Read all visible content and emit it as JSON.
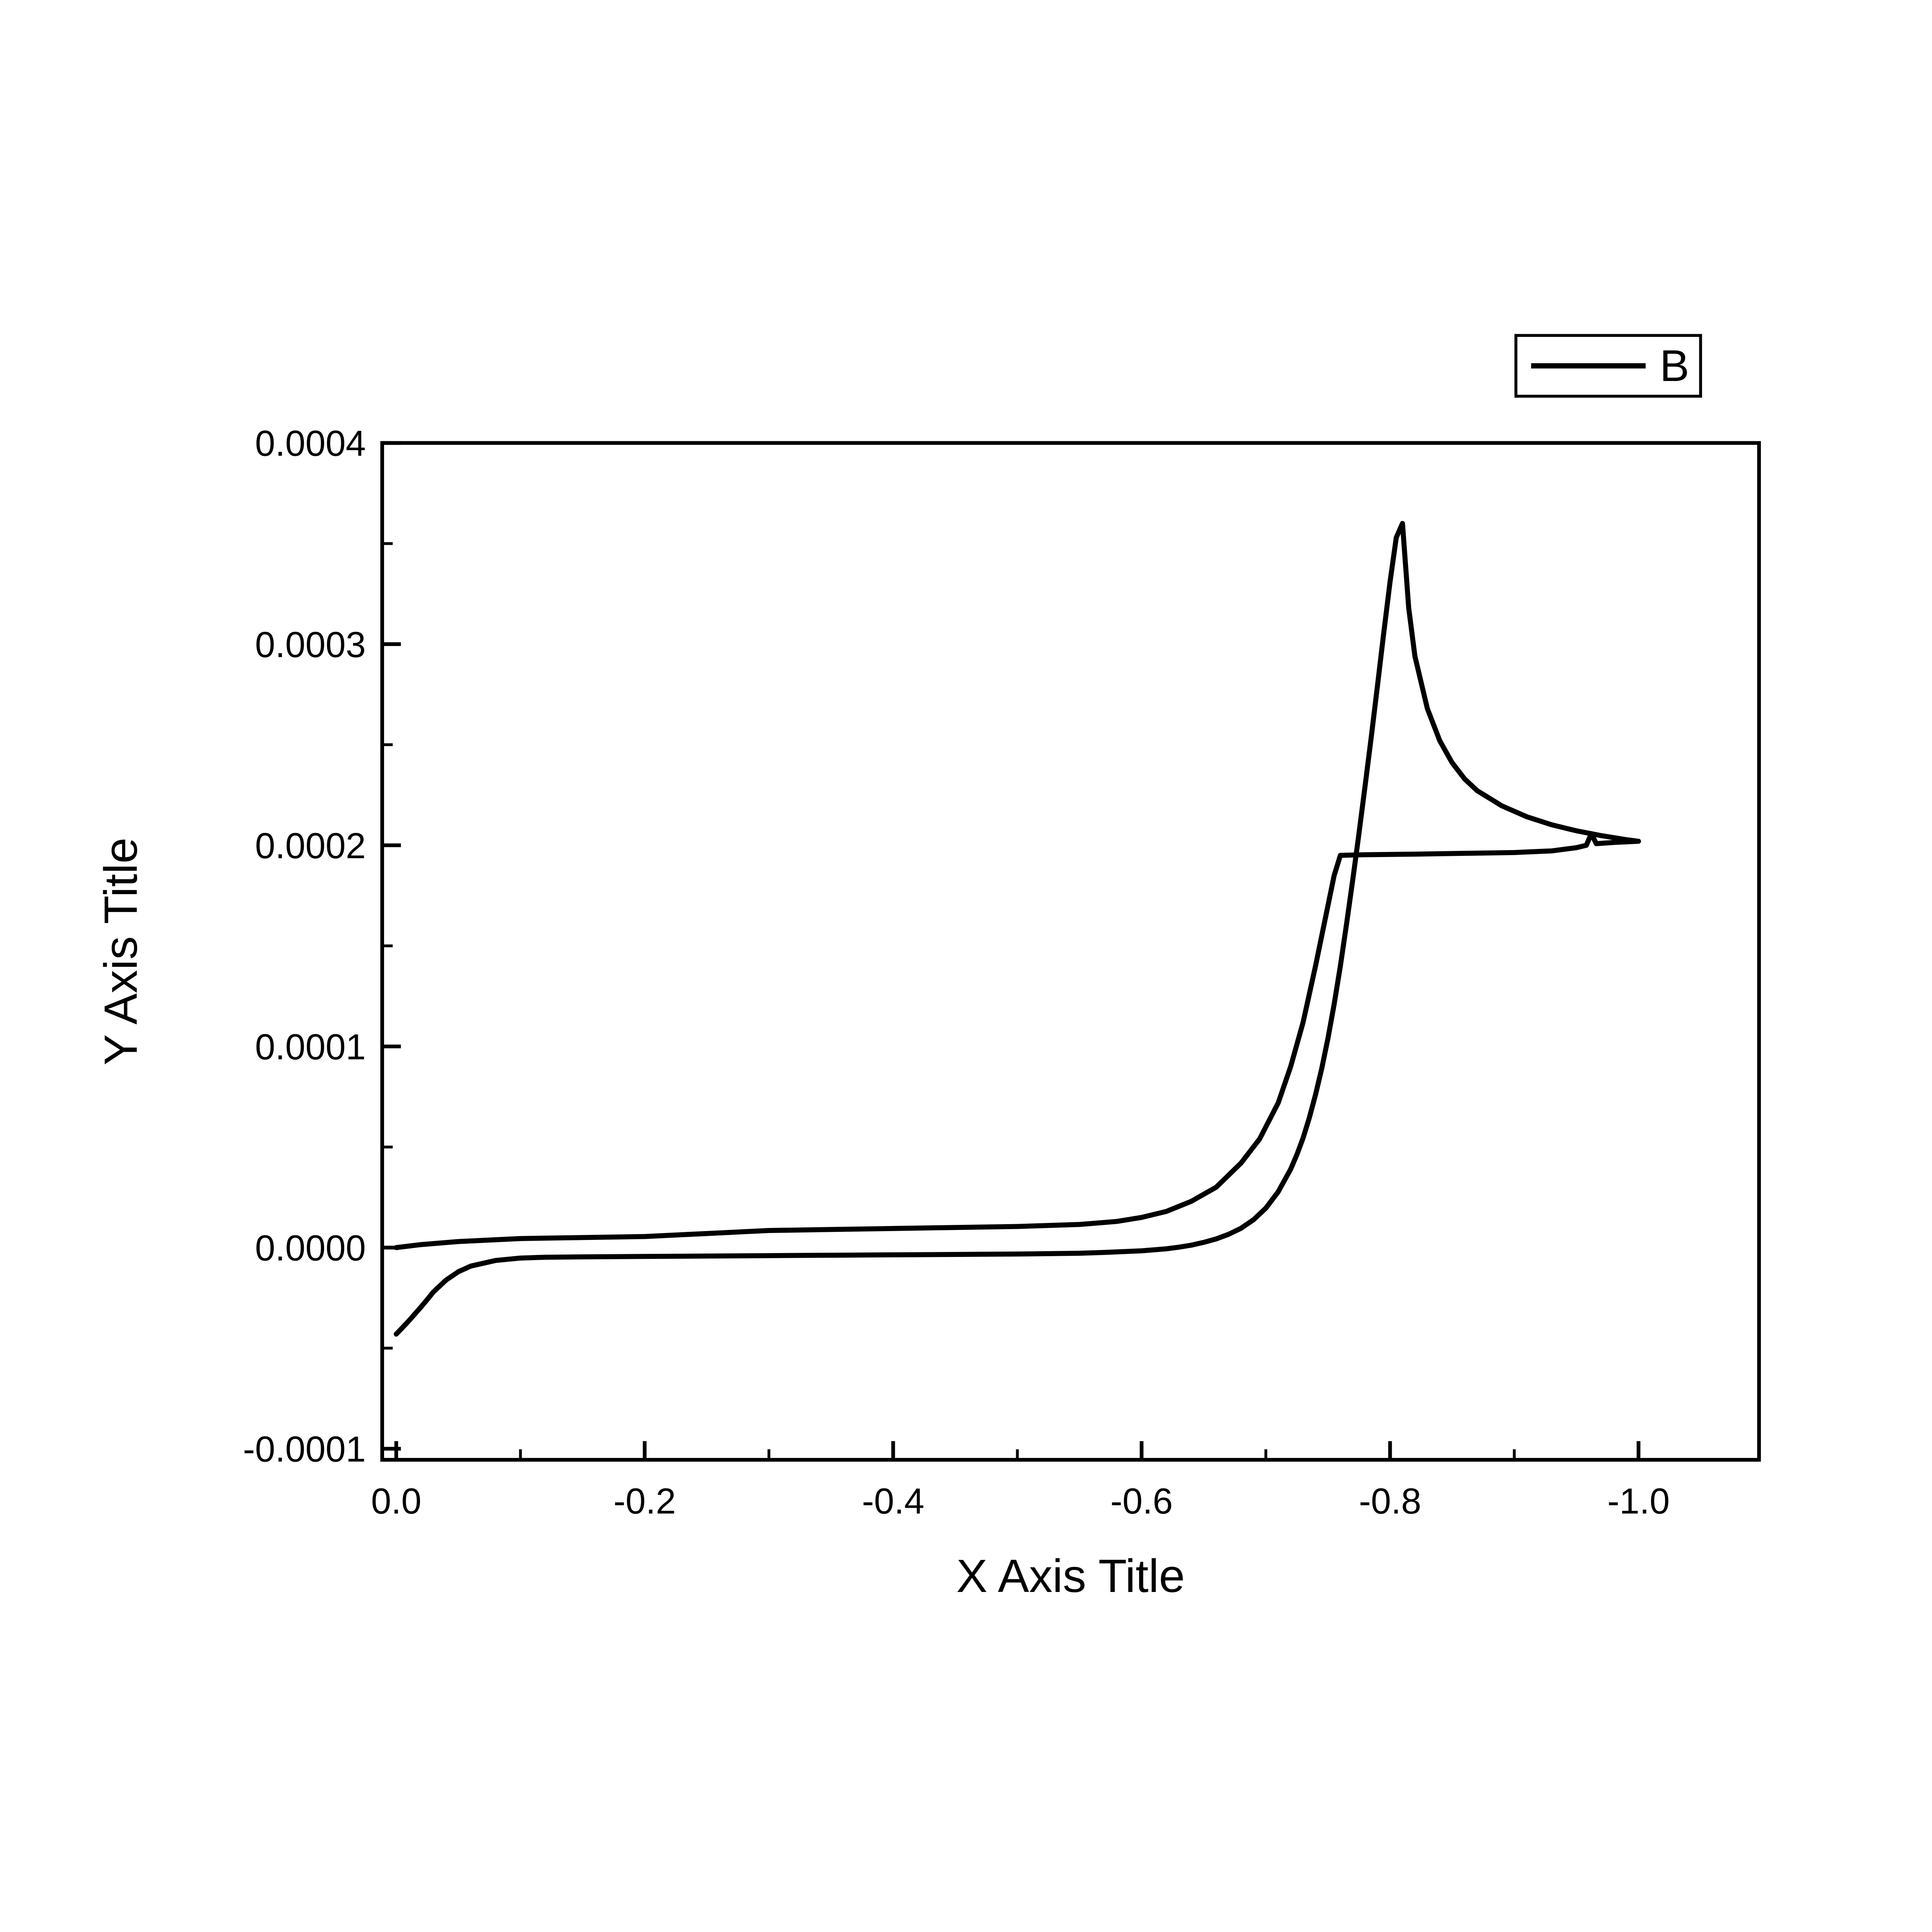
{
  "figure": {
    "background_color": "#ffffff",
    "frame_color": "#000000"
  },
  "legend": {
    "label": "B",
    "line_color": "#000000"
  },
  "chart_data": {
    "type": "line",
    "title": "",
    "xlabel": "X Axis Title",
    "ylabel": "Y Axis Title",
    "x_axis_reversed": true,
    "xlim": [
      0.0113,
      -1.097
    ],
    "ylim": [
      -0.0001055,
      0.0004
    ],
    "grid": false,
    "legend_position": "top-right-outside",
    "x_ticks": [
      {
        "value": 0.0,
        "label": "0.0"
      },
      {
        "value": -0.2,
        "label": "-0.2"
      },
      {
        "value": -0.4,
        "label": "-0.4"
      },
      {
        "value": -0.6,
        "label": "-0.6"
      },
      {
        "value": -0.8,
        "label": "-0.8"
      },
      {
        "value": -1.0,
        "label": "-1.0"
      }
    ],
    "y_ticks": [
      {
        "value": 0.0004,
        "label": "0.0004"
      },
      {
        "value": 0.0003,
        "label": "0.0003"
      },
      {
        "value": 0.0002,
        "label": "0.0002"
      },
      {
        "value": 0.0001,
        "label": "0.0001"
      },
      {
        "value": 0.0,
        "label": "0.0000"
      },
      {
        "value": -0.0001,
        "label": "-0.0001"
      }
    ],
    "x_minor_ticks": [
      -0.1,
      -0.3,
      -0.5,
      -0.7,
      -0.9
    ],
    "y_minor_ticks": [
      0.00035,
      0.00025,
      0.00015,
      5e-05,
      -5e-05
    ],
    "series": [
      {
        "name": "B",
        "color": "#000000",
        "description": "Cyclic-voltammogram-style loop: forward scan 0 to -1.0 with sigmoidal rise to plateau ~0.000195 at -0.76 and small blip near -0.96; reverse scan with sharp peak 0.00036 at -0.81 decaying toward -1.0, returning flat slightly below zero and dipping to -0.000043 at 0.",
        "points": [
          [
            0.0,
            0.0
          ],
          [
            -0.02,
            1.5e-06
          ],
          [
            -0.05,
            3e-06
          ],
          [
            -0.1,
            4.5e-06
          ],
          [
            -0.15,
            5e-06
          ],
          [
            -0.2,
            5.5e-06
          ],
          [
            -0.25,
            7e-06
          ],
          [
            -0.3,
            8.5e-06
          ],
          [
            -0.35,
            9e-06
          ],
          [
            -0.4,
            9.5e-06
          ],
          [
            -0.45,
            1e-05
          ],
          [
            -0.5,
            1.05e-05
          ],
          [
            -0.55,
            1.15e-05
          ],
          [
            -0.58,
            1.3e-05
          ],
          [
            -0.6,
            1.5e-05
          ],
          [
            -0.62,
            1.8e-05
          ],
          [
            -0.64,
            2.3e-05
          ],
          [
            -0.66,
            3e-05
          ],
          [
            -0.68,
            4.2e-05
          ],
          [
            -0.695,
            5.4e-05
          ],
          [
            -0.71,
            7.2e-05
          ],
          [
            -0.72,
            9e-05
          ],
          [
            -0.73,
            0.000112
          ],
          [
            -0.74,
            0.00014
          ],
          [
            -0.75,
            0.00017
          ],
          [
            -0.755,
            0.000185
          ],
          [
            -0.76,
            0.000195
          ],
          [
            -0.78,
            0.0001953
          ],
          [
            -0.82,
            0.0001956
          ],
          [
            -0.86,
            0.000196
          ],
          [
            -0.9,
            0.0001964
          ],
          [
            -0.93,
            0.0001972
          ],
          [
            -0.95,
            0.0001988
          ],
          [
            -0.958,
            0.0002
          ],
          [
            -0.962,
            0.0002058
          ],
          [
            -0.966,
            0.0002008
          ],
          [
            -0.98,
            0.0002014
          ],
          [
            -1.0,
            0.000202
          ],
          [
            -0.99,
            0.0002028
          ],
          [
            -0.97,
            0.0002048
          ],
          [
            -0.95,
            0.0002072
          ],
          [
            -0.93,
            0.0002102
          ],
          [
            -0.91,
            0.0002142
          ],
          [
            -0.89,
            0.0002196
          ],
          [
            -0.87,
            0.0002272
          ],
          [
            -0.86,
            0.000233
          ],
          [
            -0.85,
            0.000241
          ],
          [
            -0.84,
            0.000252
          ],
          [
            -0.83,
            0.000268
          ],
          [
            -0.82,
            0.000294
          ],
          [
            -0.815,
            0.000318
          ],
          [
            -0.81,
            0.00036
          ],
          [
            -0.805,
            0.000353
          ],
          [
            -0.8,
            0.000331
          ],
          [
            -0.795,
            0.000306
          ],
          [
            -0.79,
            0.00028
          ],
          [
            -0.785,
            0.0002545
          ],
          [
            -0.78,
            0.00023
          ],
          [
            -0.775,
            0.000206
          ],
          [
            -0.77,
            0.000183
          ],
          [
            -0.765,
            0.000161
          ],
          [
            -0.76,
            0.00014
          ],
          [
            -0.755,
            0.000121
          ],
          [
            -0.75,
            0.000104
          ],
          [
            -0.745,
            8.9e-05
          ],
          [
            -0.74,
            7.6e-05
          ],
          [
            -0.735,
            6.45e-05
          ],
          [
            -0.73,
            5.45e-05
          ],
          [
            -0.725,
            4.62e-05
          ],
          [
            -0.72,
            3.9e-05
          ],
          [
            -0.71,
            2.78e-05
          ],
          [
            -0.7,
            1.96e-05
          ],
          [
            -0.69,
            1.38e-05
          ],
          [
            -0.68,
            9.6e-06
          ],
          [
            -0.67,
            6.6e-06
          ],
          [
            -0.66,
            4.3e-06
          ],
          [
            -0.65,
            2.6e-06
          ],
          [
            -0.64,
            1.2e-06
          ],
          [
            -0.63,
            2e-07
          ],
          [
            -0.62,
            -6e-07
          ],
          [
            -0.6,
            -1.6e-06
          ],
          [
            -0.57,
            -2.4e-06
          ],
          [
            -0.55,
            -2.8e-06
          ],
          [
            -0.5,
            -3.2e-06
          ],
          [
            -0.45,
            -3.4e-06
          ],
          [
            -0.4,
            -3.6e-06
          ],
          [
            -0.35,
            -3.8e-06
          ],
          [
            -0.3,
            -4e-06
          ],
          [
            -0.25,
            -4.2e-06
          ],
          [
            -0.2,
            -4.4e-06
          ],
          [
            -0.15,
            -4.6e-06
          ],
          [
            -0.12,
            -4.8e-06
          ],
          [
            -0.1,
            -5.2e-06
          ],
          [
            -0.08,
            -6.4e-06
          ],
          [
            -0.06,
            -9.2e-06
          ],
          [
            -0.05,
            -1.2e-05
          ],
          [
            -0.04,
            -1.62e-05
          ],
          [
            -0.03,
            -2.2e-05
          ],
          [
            -0.025,
            -2.58e-05
          ],
          [
            -0.02,
            -2.95e-05
          ],
          [
            -0.015,
            -3.3e-05
          ],
          [
            -0.01,
            -3.65e-05
          ],
          [
            -0.005,
            -3.98e-05
          ],
          [
            0.0,
            -4.3e-05
          ]
        ]
      }
    ]
  }
}
